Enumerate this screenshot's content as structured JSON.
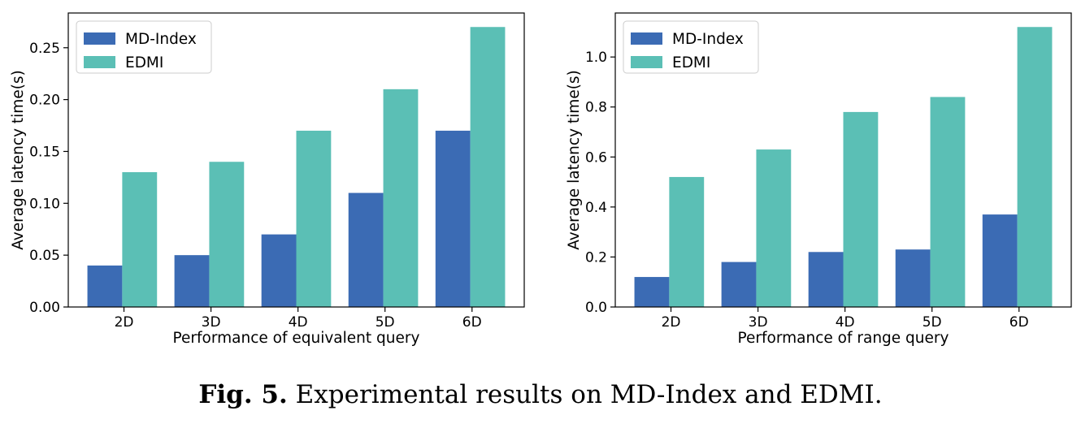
{
  "colors": {
    "md_index": "#3b6bb4",
    "edmi": "#5bbfb5"
  },
  "caption": {
    "label": "Fig. 5.",
    "text": "Experimental results on MD-Index and EDMI."
  },
  "chart_data": [
    {
      "type": "bar",
      "categories": [
        "2D",
        "3D",
        "4D",
        "5D",
        "6D"
      ],
      "series": [
        {
          "name": "MD-Index",
          "values": [
            0.04,
            0.05,
            0.07,
            0.11,
            0.17
          ]
        },
        {
          "name": "EDMI",
          "values": [
            0.13,
            0.14,
            0.17,
            0.21,
            0.27
          ]
        }
      ],
      "xlabel": "Performance of equivalent query",
      "ylabel": "Average latency time(s)",
      "ylim": [
        0,
        0.2835
      ],
      "yticks": [
        0,
        0.05,
        0.1,
        0.15,
        0.2,
        0.25
      ],
      "ytick_labels": [
        "0.00",
        "0.05",
        "0.10",
        "0.15",
        "0.20",
        "0.25"
      ],
      "legend": "top-left",
      "grid": false
    },
    {
      "type": "bar",
      "categories": [
        "2D",
        "3D",
        "4D",
        "5D",
        "6D"
      ],
      "series": [
        {
          "name": "MD-Index",
          "values": [
            0.12,
            0.18,
            0.22,
            0.23,
            0.37
          ]
        },
        {
          "name": "EDMI",
          "values": [
            0.52,
            0.63,
            0.78,
            0.84,
            1.12
          ]
        }
      ],
      "xlabel": "Performance of range query",
      "ylabel": "Average latency time(s)",
      "ylim": [
        0,
        1.176
      ],
      "yticks": [
        0,
        0.2,
        0.4,
        0.6,
        0.8,
        1.0
      ],
      "ytick_labels": [
        "0.0",
        "0.2",
        "0.4",
        "0.6",
        "0.8",
        "1.0"
      ],
      "legend": "top-left",
      "grid": false
    }
  ]
}
